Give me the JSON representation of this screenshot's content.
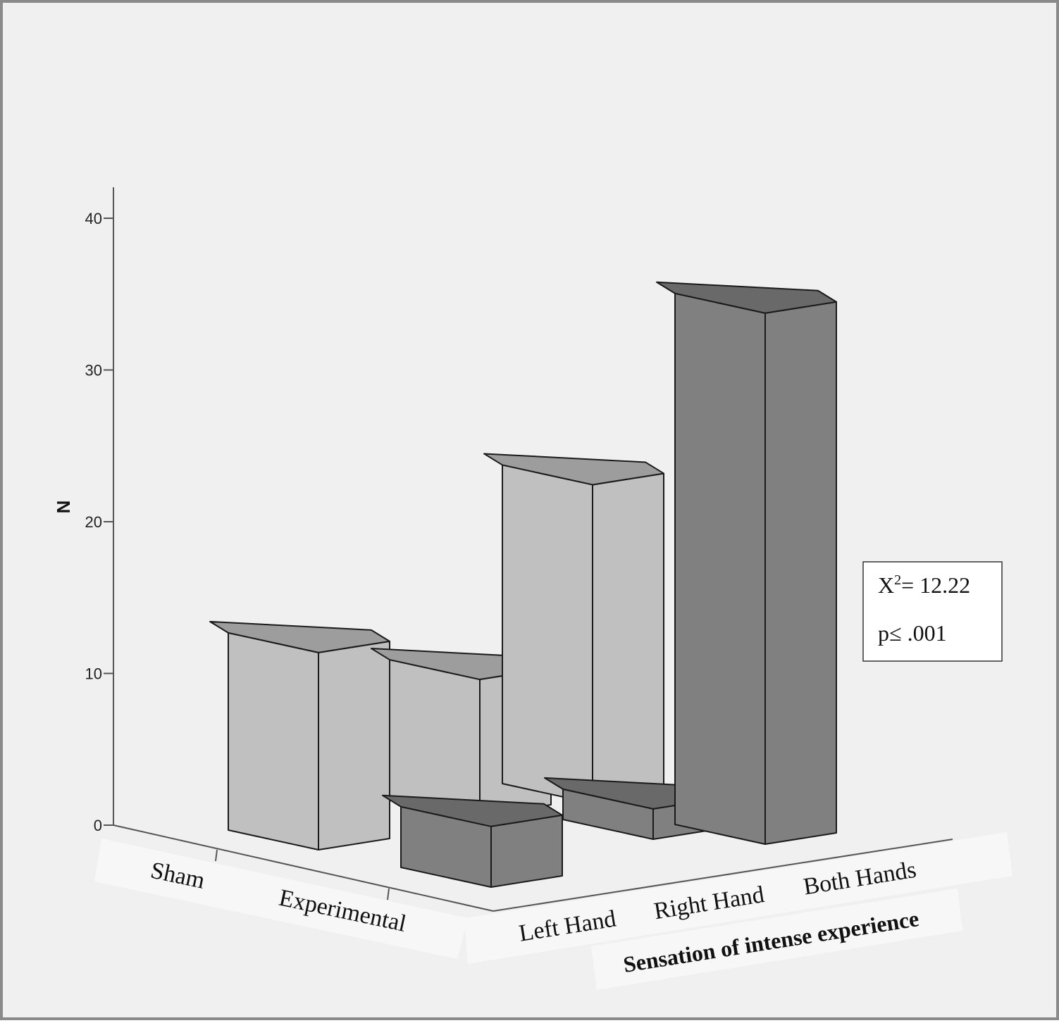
{
  "chart_data": {
    "type": "bar",
    "subtype": "3d-clustered",
    "ylabel": "N",
    "xlabel": "Sensation of intense experience",
    "ylim": [
      0,
      40
    ],
    "yticks": [
      0,
      10,
      20,
      30,
      40
    ],
    "groups": [
      "Sham",
      "Experimental"
    ],
    "categories": [
      "Left Hand",
      "Right Hand",
      "Both Hands"
    ],
    "series": [
      {
        "group": "Sham",
        "values": [
          13,
          9,
          21
        ]
      },
      {
        "group": "Experimental",
        "values": [
          4,
          2,
          35
        ]
      }
    ],
    "colors": {
      "Sham": "#c0c0c0",
      "Experimental": "#808080"
    },
    "annotation": {
      "stat_label": "X",
      "stat_sup": "2",
      "stat_value": "= 12.22",
      "p_text": "p≤ .001"
    }
  }
}
